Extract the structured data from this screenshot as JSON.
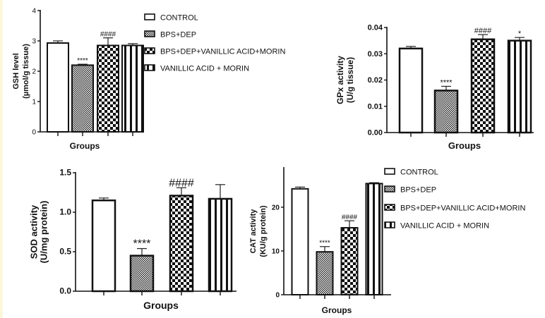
{
  "chart_data": [
    {
      "type": "bar",
      "id": "gsh",
      "ylabel": [
        "GSH level",
        "(µmol/g tissue)"
      ],
      "xlabel": "Groups",
      "ylim": [
        0,
        4
      ],
      "yticks": [
        "0",
        "1",
        "2",
        "3",
        "4"
      ],
      "yticks_values": [
        0,
        1,
        2,
        3,
        4
      ],
      "categories": [
        "CONTROL",
        "BPS+DEP",
        "BPS+DEP+VANILLIC ACID+MORIN",
        "VANILLIC ACID + MORIN"
      ],
      "values": [
        2.93,
        2.2,
        2.85,
        2.85
      ],
      "errors": [
        0.07,
        0.03,
        0.25,
        0.06
      ],
      "annotations": [
        "",
        "****",
        "####",
        ""
      ],
      "legend": [
        "CONTROL",
        "BPS+DEP",
        "BPS+DEP+VANILLIC ACID+MORIN",
        "VANILLIC ACID + MORIN"
      ]
    },
    {
      "type": "bar",
      "id": "gpx",
      "ylabel": [
        "GPx activity",
        "(U/g tissue)"
      ],
      "xlabel": "Groups",
      "ylim": [
        0,
        0.04
      ],
      "yticks": [
        "0.00",
        "0.01",
        "0.02",
        "0.03",
        "0.04"
      ],
      "yticks_values": [
        0,
        0.01,
        0.02,
        0.03,
        0.04
      ],
      "categories": [
        "CONTROL",
        "BPS+DEP",
        "BPS+DEP+VANILLIC ACID+MORIN",
        "VANILLIC ACID + MORIN"
      ],
      "values": [
        0.032,
        0.016,
        0.0355,
        0.035
      ],
      "errors": [
        0.0008,
        0.0016,
        0.0018,
        0.0012
      ],
      "annotations": [
        "",
        "****",
        "####",
        "*"
      ]
    },
    {
      "type": "bar",
      "id": "sod",
      "ylabel": [
        "SOD activity",
        "(U/mg protein)"
      ],
      "xlabel": "Groups",
      "ylim": [
        0,
        1.5
      ],
      "yticks": [
        "0.0",
        "0.5",
        "1.0",
        "1.5"
      ],
      "yticks_values": [
        0,
        0.5,
        1.0,
        1.5
      ],
      "categories": [
        "CONTROL",
        "BPS+DEP",
        "BPS+DEP+VANILLIC ACID+MORIN",
        "VANILLIC ACID + MORIN"
      ],
      "values": [
        1.15,
        0.45,
        1.21,
        1.17
      ],
      "errors": [
        0.03,
        0.09,
        0.1,
        0.18
      ],
      "annotations": [
        "",
        "****",
        "####",
        ""
      ]
    },
    {
      "type": "bar",
      "id": "cat",
      "ylabel": [
        "CAT activity",
        "(KU/g protein)"
      ],
      "xlabel": "Groups",
      "ylim": [
        0,
        29
      ],
      "yticks": [
        "0",
        "10",
        "20"
      ],
      "yticks_values": [
        0,
        10,
        20
      ],
      "categories": [
        "CONTROL",
        "BPS+DEP",
        "BPS+DEP+VANILLIC ACID+MORIN",
        "VANILLIC ACID + MORIN"
      ],
      "values": [
        24.2,
        9.8,
        15.3,
        25.4
      ],
      "errors": [
        0.4,
        1.2,
        1.6,
        0.2
      ],
      "annotations": [
        "",
        "****",
        "####",
        ""
      ],
      "legend": [
        "CONTROL",
        "BPS+DEP",
        "BPS+DEP+VANILLIC ACID+MORIN",
        "VANILLIC ACID + MORIN"
      ]
    }
  ]
}
